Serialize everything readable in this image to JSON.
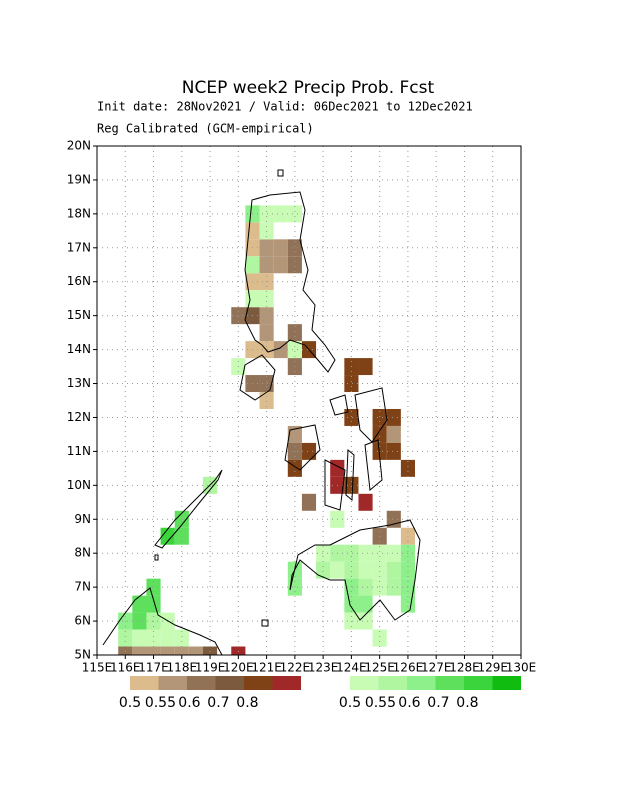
{
  "header": {
    "title": "NCEP week2 Precip Prob. Fcst",
    "subtitle": "Init date: 28Nov2021 / Valid: 06Dec2021 to 12Dec2021",
    "note": "Reg Calibrated (GCM-empirical)"
  },
  "map": {
    "xlim": [
      115,
      130
    ],
    "ylim": [
      5,
      20
    ],
    "xticks": [
      {
        "value": 115,
        "label": "115E"
      },
      {
        "value": 116,
        "label": "116E"
      },
      {
        "value": 117,
        "label": "117E"
      },
      {
        "value": 118,
        "label": "118E"
      },
      {
        "value": 119,
        "label": "119E"
      },
      {
        "value": 120,
        "label": "120E"
      },
      {
        "value": 121,
        "label": "121E"
      },
      {
        "value": 122,
        "label": "122E"
      },
      {
        "value": 123,
        "label": "123E"
      },
      {
        "value": 124,
        "label": "124E"
      },
      {
        "value": 125,
        "label": "125E"
      },
      {
        "value": 126,
        "label": "126E"
      },
      {
        "value": 127,
        "label": "127E"
      },
      {
        "value": 128,
        "label": "128E"
      },
      {
        "value": 129,
        "label": "129E"
      },
      {
        "value": 130,
        "label": "130E"
      }
    ],
    "yticks": [
      {
        "value": 5,
        "label": "5N"
      },
      {
        "value": 6,
        "label": "6N"
      },
      {
        "value": 7,
        "label": "7N"
      },
      {
        "value": 8,
        "label": "8N"
      },
      {
        "value": 9,
        "label": "9N"
      },
      {
        "value": 10,
        "label": "10N"
      },
      {
        "value": 11,
        "label": "11N"
      },
      {
        "value": 12,
        "label": "12N"
      },
      {
        "value": 13,
        "label": "13N"
      },
      {
        "value": 14,
        "label": "14N"
      },
      {
        "value": 15,
        "label": "15N"
      },
      {
        "value": 16,
        "label": "16N"
      },
      {
        "value": 17,
        "label": "17N"
      },
      {
        "value": 18,
        "label": "18N"
      },
      {
        "value": 19,
        "label": "19N"
      },
      {
        "value": 20,
        "label": "20N"
      }
    ],
    "grid": true
  },
  "legend": {
    "below": {
      "colors": [
        "#dcbc8c",
        "#b39677",
        "#917256",
        "#7b5a3e",
        "#7f4216",
        "#a02828"
      ],
      "labels": [
        "0.5",
        "0.55",
        "0.6",
        "0.7",
        "0.8"
      ]
    },
    "above": {
      "colors": [
        "#c8fcb4",
        "#b0f5a0",
        "#8ef08a",
        "#5ee05c",
        "#3cd43c",
        "#10bc10"
      ],
      "labels": [
        "0.5",
        "0.55",
        "0.6",
        "0.7",
        "0.8"
      ]
    }
  },
  "cells": {
    "below": [
      [
        120.5,
        17.5,
        0
      ],
      [
        120.5,
        17,
        0
      ],
      [
        121,
        17,
        1
      ],
      [
        121.5,
        17,
        1
      ],
      [
        122,
        17,
        2
      ],
      [
        121,
        16.5,
        1
      ],
      [
        121.5,
        16.5,
        1
      ],
      [
        122,
        16.5,
        2
      ],
      [
        120.5,
        16,
        0
      ],
      [
        121,
        16,
        0
      ],
      [
        120,
        15,
        2
      ],
      [
        120.5,
        15,
        3
      ],
      [
        121,
        15,
        1
      ],
      [
        121,
        14.5,
        1
      ],
      [
        122,
        14.5,
        2
      ],
      [
        120.5,
        14,
        0
      ],
      [
        121,
        14,
        0
      ],
      [
        121.5,
        14,
        1
      ],
      [
        122.5,
        14,
        4
      ],
      [
        122,
        13.5,
        2
      ],
      [
        120.5,
        13,
        2
      ],
      [
        121,
        13,
        2
      ],
      [
        124,
        13.5,
        4
      ],
      [
        124.5,
        13.5,
        4
      ],
      [
        124,
        13,
        4
      ],
      [
        121,
        12.5,
        0
      ],
      [
        124,
        12,
        4
      ],
      [
        125,
        12,
        4
      ],
      [
        125.5,
        12,
        4
      ],
      [
        122,
        11.5,
        1
      ],
      [
        125,
        11.5,
        4
      ],
      [
        125.5,
        11.5,
        1
      ],
      [
        122,
        11,
        2
      ],
      [
        122.5,
        11,
        4
      ],
      [
        125,
        11,
        4
      ],
      [
        125.5,
        11,
        4
      ],
      [
        122,
        10.5,
        4
      ],
      [
        123.5,
        10.5,
        5
      ],
      [
        126,
        10.5,
        4
      ],
      [
        123.5,
        10,
        5
      ],
      [
        124,
        10,
        4
      ],
      [
        122.5,
        9.5,
        2
      ],
      [
        124.5,
        9.5,
        5
      ],
      [
        125.5,
        9,
        2
      ],
      [
        125,
        8.5,
        2
      ],
      [
        126,
        8.5,
        0
      ],
      [
        116,
        5,
        2
      ],
      [
        116.5,
        5,
        1
      ],
      [
        117,
        5,
        1
      ],
      [
        117.5,
        5,
        1
      ],
      [
        118,
        5,
        1
      ],
      [
        118.5,
        5,
        1
      ],
      [
        119,
        5,
        3
      ],
      [
        120,
        5,
        5
      ]
    ],
    "above": [
      [
        120.5,
        18,
        2
      ],
      [
        121,
        18,
        0
      ],
      [
        121.5,
        18,
        0
      ],
      [
        122,
        18,
        0
      ],
      [
        121,
        17.5,
        0
      ],
      [
        120.5,
        16.5,
        1
      ],
      [
        120.5,
        15.5,
        0
      ],
      [
        121,
        15.5,
        0
      ],
      [
        122,
        14,
        0
      ],
      [
        120,
        13.5,
        0
      ],
      [
        123.5,
        9,
        0
      ],
      [
        119,
        10,
        1
      ],
      [
        118,
        9,
        3
      ],
      [
        117.5,
        8.5,
        4
      ],
      [
        118,
        8.5,
        3
      ],
      [
        123,
        8,
        0
      ],
      [
        123.5,
        8,
        1
      ],
      [
        124,
        8,
        1
      ],
      [
        124.5,
        8,
        0
      ],
      [
        125,
        8,
        0
      ],
      [
        125.5,
        8,
        0
      ],
      [
        126,
        8,
        2
      ],
      [
        122,
        7.5,
        2
      ],
      [
        123,
        7.5,
        1
      ],
      [
        123.5,
        7.5,
        0
      ],
      [
        124,
        7.5,
        1
      ],
      [
        124.5,
        7.5,
        0
      ],
      [
        125,
        7.5,
        0
      ],
      [
        125.5,
        7.5,
        1
      ],
      [
        126,
        7.5,
        2
      ],
      [
        122,
        7,
        2
      ],
      [
        124,
        7,
        2
      ],
      [
        124.5,
        7,
        1
      ],
      [
        125,
        7,
        0
      ],
      [
        125.5,
        7,
        1
      ],
      [
        126,
        7,
        2
      ],
      [
        124,
        6.5,
        2
      ],
      [
        124.5,
        6.5,
        2
      ],
      [
        126,
        6.5,
        2
      ],
      [
        124,
        6,
        0
      ],
      [
        124.5,
        6,
        0
      ],
      [
        125,
        5.5,
        0
      ],
      [
        117,
        7,
        3
      ],
      [
        116.5,
        6.5,
        3
      ],
      [
        117,
        6.5,
        3
      ],
      [
        116,
        6,
        2
      ],
      [
        116.5,
        6,
        3
      ],
      [
        117,
        6,
        1
      ],
      [
        117.5,
        6,
        0
      ],
      [
        116,
        5.5,
        1
      ],
      [
        116.5,
        5.5,
        0
      ],
      [
        117,
        5.5,
        0
      ],
      [
        117.5,
        5.5,
        0
      ],
      [
        118,
        5.5,
        0
      ]
    ]
  }
}
